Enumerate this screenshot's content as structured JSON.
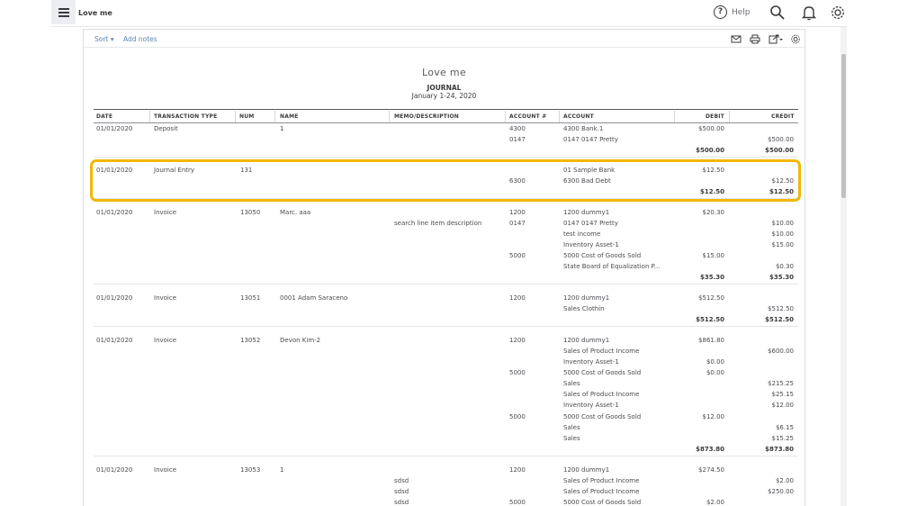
{
  "topbar": {
    "company": "Love me",
    "help_label": "Help",
    "icons": [
      "hamburger-menu-icon",
      "help-circle-icon",
      "search-icon",
      "bell-icon",
      "gear-icon"
    ]
  },
  "toolbar": {
    "sort_label": "Sort",
    "add_notes_label": "Add notes",
    "icons": [
      "email-icon",
      "print-icon",
      "export-icon",
      "settings-icon"
    ]
  },
  "report": {
    "company": "Love me",
    "title": "JOURNAL",
    "date_range": "January 1-24, 2020"
  },
  "columns": [
    "DATE",
    "TRANSACTION TYPE",
    "NUM",
    "NAME",
    "MEMO/DESCRIPTION",
    "ACCOUNT #",
    "ACCOUNT",
    "DEBIT",
    "CREDIT"
  ],
  "rows": [
    {
      "date": "01/01/2020",
      "type": "Deposit",
      "num": "",
      "name": "1",
      "memo": "",
      "acctno": "4300",
      "account": "4300 Bank.1",
      "debit": "$500.00",
      "credit": ""
    },
    {
      "date": "",
      "type": "",
      "num": "",
      "name": "",
      "memo": "",
      "acctno": "0147",
      "account": "0147 0147 Pretty",
      "debit": "",
      "credit": "$500.00"
    },
    {
      "date": "",
      "type": "",
      "num": "",
      "name": "",
      "memo": "",
      "acctno": "",
      "account": "",
      "debit": "$500.00",
      "credit": "$500.00",
      "total": true
    },
    {
      "date": "01/01/2020",
      "type": "Journal Entry",
      "num": "131",
      "name": "",
      "memo": "",
      "acctno": "",
      "account": "01 Sample Bank",
      "debit": "$12.50",
      "credit": ""
    },
    {
      "date": "",
      "type": "",
      "num": "",
      "name": "",
      "memo": "",
      "acctno": "6300",
      "account": "6300 Bad Debt",
      "debit": "",
      "credit": "$12.50"
    },
    {
      "date": "",
      "type": "",
      "num": "",
      "name": "",
      "memo": "",
      "acctno": "",
      "account": "",
      "debit": "$12.50",
      "credit": "$12.50",
      "total": true
    },
    {
      "date": "01/01/2020",
      "type": "Invoice",
      "num": "13050",
      "name": "Marc. aaa",
      "memo": "",
      "acctno": "1200",
      "account": "1200 dummy1",
      "debit": "$20.30",
      "credit": ""
    },
    {
      "date": "",
      "type": "",
      "num": "",
      "name": "",
      "memo": "search line item description",
      "acctno": "0147",
      "account": "0147 0147 Pretty",
      "debit": "",
      "credit": "$10.00"
    },
    {
      "date": "",
      "type": "",
      "num": "",
      "name": "",
      "memo": "",
      "acctno": "",
      "account": "test income",
      "debit": "",
      "credit": "$10.00"
    },
    {
      "date": "",
      "type": "",
      "num": "",
      "name": "",
      "memo": "",
      "acctno": "",
      "account": "Inventory Asset-1",
      "debit": "",
      "credit": "$15.00"
    },
    {
      "date": "",
      "type": "",
      "num": "",
      "name": "",
      "memo": "",
      "acctno": "5000",
      "account": "5000 Cost of Goods Sold",
      "debit": "$15.00",
      "credit": ""
    },
    {
      "date": "",
      "type": "",
      "num": "",
      "name": "",
      "memo": "",
      "acctno": "",
      "account": "State Board of Equalization P...",
      "debit": "",
      "credit": "$0.30"
    },
    {
      "date": "",
      "type": "",
      "num": "",
      "name": "",
      "memo": "",
      "acctno": "",
      "account": "",
      "debit": "$35.30",
      "credit": "$35.30",
      "total": true
    },
    {
      "date": "01/01/2020",
      "type": "Invoice",
      "num": "13051",
      "name": "0001 Adam Saraceno",
      "memo": "",
      "acctno": "1200",
      "account": "1200 dummy1",
      "debit": "$512.50",
      "credit": ""
    },
    {
      "date": "",
      "type": "",
      "num": "",
      "name": "",
      "memo": "",
      "acctno": "",
      "account": "Sales Clothin",
      "debit": "",
      "credit": "$512.50"
    },
    {
      "date": "",
      "type": "",
      "num": "",
      "name": "",
      "memo": "",
      "acctno": "",
      "account": "",
      "debit": "$512.50",
      "credit": "$512.50",
      "total": true
    },
    {
      "date": "01/01/2020",
      "type": "Invoice",
      "num": "13052",
      "name": "Devon Kim-2",
      "memo": "",
      "acctno": "1200",
      "account": "1200 dummy1",
      "debit": "$861.80",
      "credit": ""
    },
    {
      "date": "",
      "type": "",
      "num": "",
      "name": "",
      "memo": "",
      "acctno": "",
      "account": "Sales of Product Income",
      "debit": "",
      "credit": "$600.00"
    },
    {
      "date": "",
      "type": "",
      "num": "",
      "name": "",
      "memo": "",
      "acctno": "",
      "account": "Inventory Asset-1",
      "debit": "$0.00",
      "credit": ""
    },
    {
      "date": "",
      "type": "",
      "num": "",
      "name": "",
      "memo": "",
      "acctno": "5000",
      "account": "5000 Cost of Goods Sold",
      "debit": "$0.00",
      "credit": ""
    },
    {
      "date": "",
      "type": "",
      "num": "",
      "name": "",
      "memo": "",
      "acctno": "",
      "account": "Sales",
      "debit": "",
      "credit": "$215.25"
    },
    {
      "date": "",
      "type": "",
      "num": "",
      "name": "",
      "memo": "",
      "acctno": "",
      "account": "Sales of Product Income",
      "debit": "",
      "credit": "$25.15"
    },
    {
      "date": "",
      "type": "",
      "num": "",
      "name": "",
      "memo": "",
      "acctno": "",
      "account": "Inventory Asset-1",
      "debit": "",
      "credit": "$12.00"
    },
    {
      "date": "",
      "type": "",
      "num": "",
      "name": "",
      "memo": "",
      "acctno": "5000",
      "account": "5000 Cost of Goods Sold",
      "debit": "$12.00",
      "credit": ""
    },
    {
      "date": "",
      "type": "",
      "num": "",
      "name": "",
      "memo": "",
      "acctno": "",
      "account": "Sales",
      "debit": "",
      "credit": "$6.15"
    },
    {
      "date": "",
      "type": "",
      "num": "",
      "name": "",
      "memo": "",
      "acctno": "",
      "account": "Sales",
      "debit": "",
      "credit": "$15.25"
    },
    {
      "date": "",
      "type": "",
      "num": "",
      "name": "",
      "memo": "",
      "acctno": "",
      "account": "",
      "debit": "$873.80",
      "credit": "$873.80",
      "total": true
    },
    {
      "date": "01/01/2020",
      "type": "Invoice",
      "num": "13053",
      "name": "1",
      "memo": "",
      "acctno": "1200",
      "account": "1200 dummy1",
      "debit": "$274.50",
      "credit": ""
    },
    {
      "date": "",
      "type": "",
      "num": "",
      "name": "",
      "memo": "sdsd",
      "acctno": "",
      "account": "Sales of Product Income",
      "debit": "",
      "credit": "$2.00"
    },
    {
      "date": "",
      "type": "",
      "num": "",
      "name": "",
      "memo": "sdsd",
      "acctno": "",
      "account": "Sales of Product Income",
      "debit": "",
      "credit": "$250.00"
    },
    {
      "date": "",
      "type": "",
      "num": "",
      "name": "",
      "memo": "sdsd",
      "acctno": "5000",
      "account": "5000 Cost of Goods Sold",
      "debit": "$2.00",
      "credit": ""
    }
  ],
  "colors": {
    "highlight": "#f2b705",
    "link": "#5a86b5",
    "text": "#393a3d"
  }
}
